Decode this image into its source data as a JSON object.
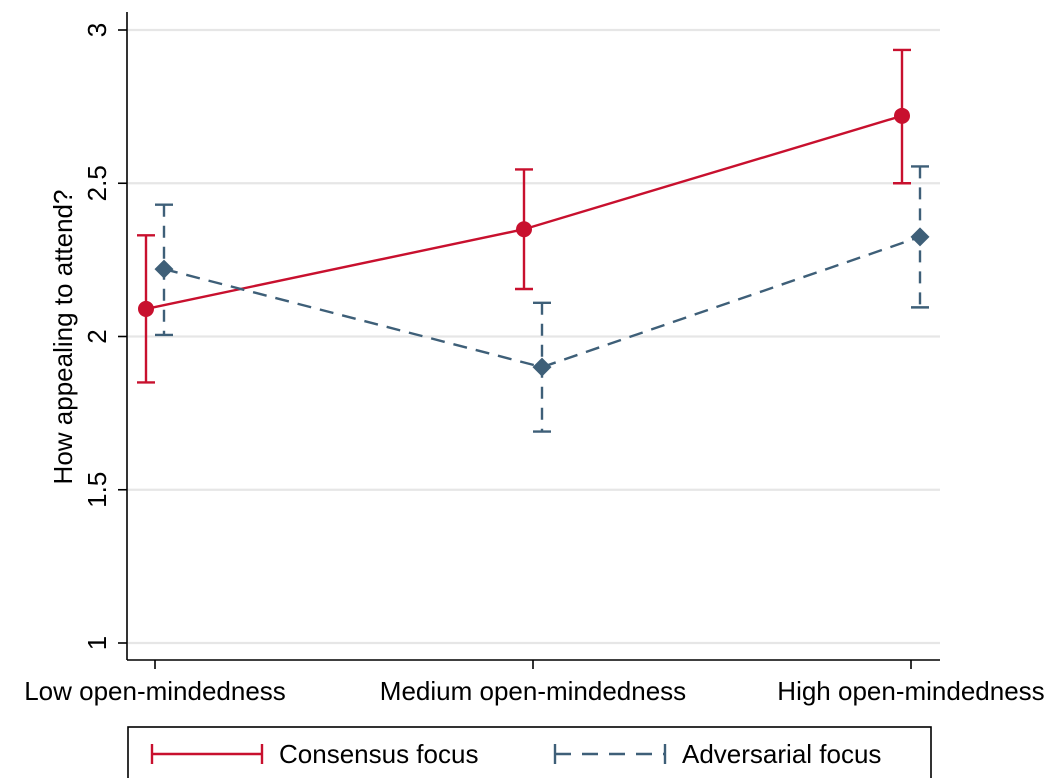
{
  "chart_data": {
    "type": "line",
    "title": "",
    "xlabel": "",
    "ylabel": "How appealing to attend?",
    "categories": [
      "Low open-mindedness",
      "Medium open-mindedness",
      "High open-mindedness"
    ],
    "ylim": [
      1,
      3
    ],
    "yticks": [
      {
        "value": 1,
        "label": "1"
      },
      {
        "value": 1.5,
        "label": "1.5"
      },
      {
        "value": 2,
        "label": "2"
      },
      {
        "value": 2.5,
        "label": "2.5"
      },
      {
        "value": 3,
        "label": "3"
      }
    ],
    "grid": true,
    "legend_position": "bottom",
    "series": [
      {
        "name": "Consensus focus",
        "color": "#c8102e",
        "marker": "circle",
        "line_style": "solid",
        "values": [
          2.09,
          2.35,
          2.72
        ],
        "ci_low": [
          1.85,
          2.155,
          2.5
        ],
        "ci_high": [
          2.33,
          2.545,
          2.935
        ]
      },
      {
        "name": "Adversarial focus",
        "color": "#3e5f78",
        "marker": "diamond",
        "line_style": "dashed",
        "values": [
          2.22,
          1.9,
          2.325
        ],
        "ci_low": [
          2.005,
          1.69,
          2.095
        ],
        "ci_high": [
          2.43,
          2.11,
          2.555
        ]
      }
    ]
  }
}
